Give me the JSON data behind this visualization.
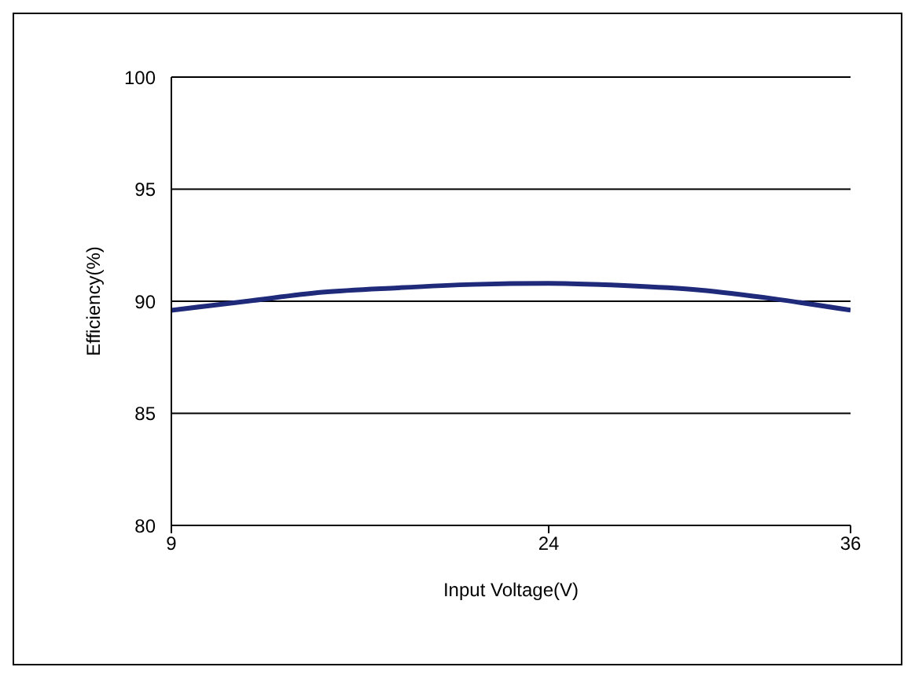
{
  "chart_data": {
    "type": "line",
    "xlabel": "Input Voltage(V)",
    "ylabel": "Efficiency(%)",
    "x": [
      9,
      12,
      15,
      18,
      21,
      24,
      27,
      30,
      33,
      36
    ],
    "series": [
      {
        "color": "#1f2a7a",
        "values": [
          89.6,
          90.0,
          90.4,
          90.6,
          90.75,
          90.8,
          90.7,
          90.5,
          90.1,
          89.6
        ]
      }
    ],
    "xlim": [
      9,
      36
    ],
    "xticks": [
      9,
      24,
      36
    ],
    "ylim": [
      80,
      100
    ],
    "yticks": [
      80,
      85,
      90,
      95,
      100
    ],
    "grid": "y",
    "legend": false,
    "marker": "none",
    "line_style": "solid"
  }
}
